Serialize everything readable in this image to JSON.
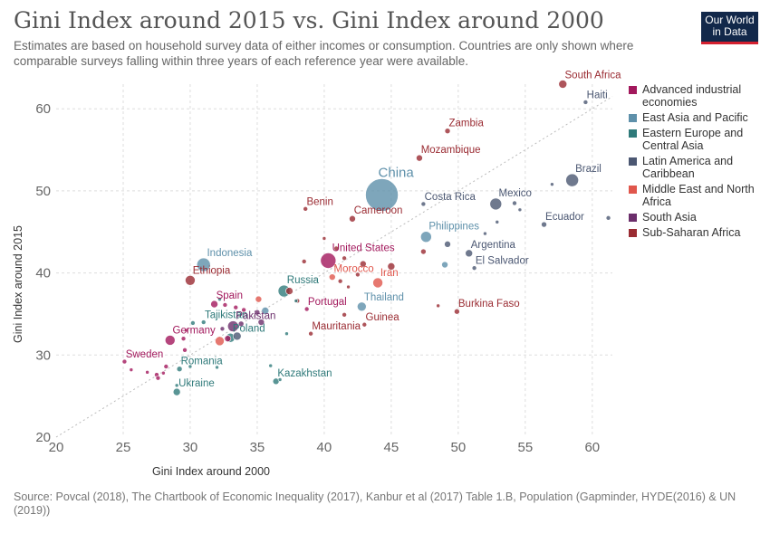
{
  "header": {
    "title": "Gini Index around 2015 vs. Gini Index around 2000",
    "subtitle": "Estimates are based on household survey data of either incomes or consumption. Countries are only shown where comparable surveys falling within three years of each reference year were available."
  },
  "logo": {
    "line1": "Our World",
    "line2": "in Data"
  },
  "footer": {
    "source": "Source: Povcal (2018), The Chartbook of Economic Inequality (2017), Kanbur et al (2017) Table 1.B, Population (Gapminder, HYDE(2016) & UN (2019))"
  },
  "chart_data": {
    "type": "scatter",
    "xlabel": "Gini Index around 2000",
    "ylabel": "Gini Index around 2015",
    "xlim": [
      20,
      61.5
    ],
    "ylim": [
      20,
      63
    ],
    "xticks": [
      20,
      25,
      30,
      35,
      40,
      45,
      50,
      55,
      60
    ],
    "yticks": [
      20,
      30,
      40,
      50,
      60
    ],
    "grid": true,
    "diagonal_reference_line": true,
    "legend_position": "right",
    "series": [
      {
        "name": "Advanced industrial economies",
        "color": "#a2185c"
      },
      {
        "name": "East Asia and Pacific",
        "color": "#5e90aa"
      },
      {
        "name": "Eastern Europe and Central Asia",
        "color": "#2f7a7a"
      },
      {
        "name": "Latin America and Caribbean",
        "color": "#4b5772"
      },
      {
        "name": "Middle East and North Africa",
        "color": "#e0564c"
      },
      {
        "name": "South Asia",
        "color": "#6b2e6b"
      },
      {
        "name": "Sub-Saharan Africa",
        "color": "#9a2b32"
      }
    ],
    "points": [
      {
        "label": "South Africa",
        "x": 57.8,
        "y": 63.0,
        "size": 9,
        "region": 6
      },
      {
        "label": "Haiti",
        "x": 59.5,
        "y": 60.8,
        "size": 5,
        "region": 3
      },
      {
        "label": "Zambia",
        "x": 49.2,
        "y": 57.3,
        "size": 6,
        "region": 6
      },
      {
        "label": "Mozambique",
        "x": 47.1,
        "y": 54.0,
        "size": 7,
        "region": 6
      },
      {
        "label": "Brazil",
        "x": 58.5,
        "y": 51.3,
        "size": 14,
        "region": 3
      },
      {
        "label": "China",
        "x": 44.3,
        "y": 49.5,
        "size": 36,
        "region": 1
      },
      {
        "label": "Costa Rica",
        "x": 47.4,
        "y": 48.4,
        "size": 5,
        "region": 3
      },
      {
        "label": "Mexico",
        "x": 52.8,
        "y": 48.4,
        "size": 13,
        "region": 3
      },
      {
        "label": "Benin",
        "x": 38.6,
        "y": 47.8,
        "size": 5,
        "region": 6
      },
      {
        "label": "Cameroon",
        "x": 42.1,
        "y": 46.6,
        "size": 7,
        "region": 6
      },
      {
        "label": "Ecuador",
        "x": 56.4,
        "y": 45.9,
        "size": 6,
        "region": 3
      },
      {
        "label": "Philippines",
        "x": 47.6,
        "y": 44.4,
        "size": 12,
        "region": 1
      },
      {
        "label": "Argentina",
        "x": 50.8,
        "y": 42.4,
        "size": 8,
        "region": 3
      },
      {
        "label": "United States",
        "x": 40.3,
        "y": 41.5,
        "size": 17,
        "region": 0
      },
      {
        "label": "El Salvador",
        "x": 51.2,
        "y": 40.6,
        "size": 5,
        "region": 3
      },
      {
        "label": "Indonesia",
        "x": 31.0,
        "y": 41.0,
        "size": 15,
        "region": 1
      },
      {
        "label": "Morocco",
        "x": 40.6,
        "y": 39.5,
        "size": 7,
        "region": 4
      },
      {
        "label": "Iran",
        "x": 44.0,
        "y": 38.8,
        "size": 11,
        "region": 4
      },
      {
        "label": "Ethiopia",
        "x": 30.0,
        "y": 39.1,
        "size": 11,
        "region": 6
      },
      {
        "label": "Russia",
        "x": 37.0,
        "y": 37.8,
        "size": 13,
        "region": 2
      },
      {
        "label": "Spain",
        "x": 31.8,
        "y": 36.2,
        "size": 8,
        "region": 0
      },
      {
        "label": "Portugal",
        "x": 38.7,
        "y": 35.6,
        "size": 5,
        "region": 0
      },
      {
        "label": "Thailand",
        "x": 42.8,
        "y": 35.9,
        "size": 10,
        "region": 1
      },
      {
        "label": "Burkina Faso",
        "x": 49.9,
        "y": 35.3,
        "size": 6,
        "region": 6
      },
      {
        "label": "Tajikistan",
        "x": 31.0,
        "y": 34.0,
        "size": 5,
        "region": 2
      },
      {
        "label": "Pakistan",
        "x": 33.2,
        "y": 33.5,
        "size": 12,
        "region": 5
      },
      {
        "label": "Guinea",
        "x": 43.0,
        "y": 33.7,
        "size": 5,
        "region": 6
      },
      {
        "label": "Mauritania",
        "x": 39.0,
        "y": 32.6,
        "size": 5,
        "region": 6
      },
      {
        "label": "Germany",
        "x": 28.5,
        "y": 31.8,
        "size": 11,
        "region": 0
      },
      {
        "label": "Poland",
        "x": 33.0,
        "y": 32.1,
        "size": 10,
        "region": 2
      },
      {
        "label": "Sweden",
        "x": 25.1,
        "y": 29.2,
        "size": 5,
        "region": 0
      },
      {
        "label": "Romania",
        "x": 29.2,
        "y": 28.3,
        "size": 6,
        "region": 2
      },
      {
        "label": "Kazakhstan",
        "x": 36.4,
        "y": 26.8,
        "size": 7,
        "region": 2
      },
      {
        "label": "Ukraine",
        "x": 29.0,
        "y": 25.5,
        "size": 8,
        "region": 2
      },
      {
        "label": "",
        "x": 61.2,
        "y": 46.7,
        "size": 5,
        "region": 3
      },
      {
        "label": "",
        "x": 57.0,
        "y": 50.8,
        "size": 4,
        "region": 3
      },
      {
        "label": "",
        "x": 54.2,
        "y": 48.5,
        "size": 5,
        "region": 3
      },
      {
        "label": "",
        "x": 54.6,
        "y": 47.7,
        "size": 4,
        "region": 3
      },
      {
        "label": "",
        "x": 52.0,
        "y": 44.8,
        "size": 4,
        "region": 3
      },
      {
        "label": "",
        "x": 49.2,
        "y": 43.5,
        "size": 7,
        "region": 3
      },
      {
        "label": "",
        "x": 52.9,
        "y": 46.2,
        "size": 4,
        "region": 3
      },
      {
        "label": "",
        "x": 49.0,
        "y": 41.0,
        "size": 7,
        "region": 1
      },
      {
        "label": "",
        "x": 47.4,
        "y": 42.6,
        "size": 6,
        "region": 6
      },
      {
        "label": "",
        "x": 45.0,
        "y": 40.8,
        "size": 8,
        "region": 6
      },
      {
        "label": "",
        "x": 42.9,
        "y": 41.1,
        "size": 7,
        "region": 6
      },
      {
        "label": "",
        "x": 42.5,
        "y": 39.8,
        "size": 5,
        "region": 6
      },
      {
        "label": "",
        "x": 40.0,
        "y": 44.2,
        "size": 4,
        "region": 6
      },
      {
        "label": "",
        "x": 40.9,
        "y": 43.0,
        "size": 5,
        "region": 6
      },
      {
        "label": "",
        "x": 41.5,
        "y": 41.8,
        "size": 5,
        "region": 6
      },
      {
        "label": "",
        "x": 38.5,
        "y": 41.4,
        "size": 5,
        "region": 6
      },
      {
        "label": "",
        "x": 41.2,
        "y": 39.0,
        "size": 5,
        "region": 6
      },
      {
        "label": "",
        "x": 41.5,
        "y": 34.9,
        "size": 5,
        "region": 6
      },
      {
        "label": "",
        "x": 41.8,
        "y": 38.3,
        "size": 4,
        "region": 6
      },
      {
        "label": "",
        "x": 48.5,
        "y": 36.0,
        "size": 4,
        "region": 6
      },
      {
        "label": "",
        "x": 38.0,
        "y": 36.6,
        "size": 5,
        "region": 6
      },
      {
        "label": "",
        "x": 37.4,
        "y": 37.8,
        "size": 8,
        "region": 6
      },
      {
        "label": "",
        "x": 35.1,
        "y": 36.8,
        "size": 7,
        "region": 4
      },
      {
        "label": "",
        "x": 35.6,
        "y": 35.4,
        "size": 8,
        "region": 1
      },
      {
        "label": "",
        "x": 35.3,
        "y": 34.0,
        "size": 7,
        "region": 5
      },
      {
        "label": "",
        "x": 35.0,
        "y": 35.2,
        "size": 6,
        "region": 5
      },
      {
        "label": "",
        "x": 34.0,
        "y": 35.5,
        "size": 5,
        "region": 0
      },
      {
        "label": "",
        "x": 33.4,
        "y": 35.8,
        "size": 5,
        "region": 0
      },
      {
        "label": "",
        "x": 32.6,
        "y": 36.1,
        "size": 5,
        "region": 0
      },
      {
        "label": "",
        "x": 32.2,
        "y": 36.8,
        "size": 4,
        "region": 2
      },
      {
        "label": "",
        "x": 37.9,
        "y": 36.6,
        "size": 4,
        "region": 2
      },
      {
        "label": "",
        "x": 37.2,
        "y": 32.6,
        "size": 4,
        "region": 2
      },
      {
        "label": "",
        "x": 33.5,
        "y": 32.3,
        "size": 9,
        "region": 3
      },
      {
        "label": "",
        "x": 32.8,
        "y": 32.0,
        "size": 7,
        "region": 0
      },
      {
        "label": "",
        "x": 32.2,
        "y": 31.7,
        "size": 10,
        "region": 4
      },
      {
        "label": "",
        "x": 33.8,
        "y": 33.8,
        "size": 6,
        "region": 5
      },
      {
        "label": "",
        "x": 29.5,
        "y": 32.0,
        "size": 5,
        "region": 0
      },
      {
        "label": "",
        "x": 29.7,
        "y": 33.0,
        "size": 4,
        "region": 0
      },
      {
        "label": "",
        "x": 30.2,
        "y": 33.9,
        "size": 5,
        "region": 2
      },
      {
        "label": "",
        "x": 29.6,
        "y": 30.6,
        "size": 5,
        "region": 0
      },
      {
        "label": "",
        "x": 25.6,
        "y": 28.2,
        "size": 4,
        "region": 0
      },
      {
        "label": "",
        "x": 26.8,
        "y": 27.9,
        "size": 4,
        "region": 0
      },
      {
        "label": "",
        "x": 27.5,
        "y": 27.6,
        "size": 5,
        "region": 0
      },
      {
        "label": "",
        "x": 27.6,
        "y": 27.2,
        "size": 5,
        "region": 0
      },
      {
        "label": "",
        "x": 28.2,
        "y": 28.6,
        "size": 5,
        "region": 0
      },
      {
        "label": "",
        "x": 28.0,
        "y": 27.8,
        "size": 4,
        "region": 0
      },
      {
        "label": "",
        "x": 29.0,
        "y": 26.3,
        "size": 4,
        "region": 2
      },
      {
        "label": "",
        "x": 30.0,
        "y": 28.6,
        "size": 4,
        "region": 2
      },
      {
        "label": "",
        "x": 32.0,
        "y": 28.5,
        "size": 4,
        "region": 2
      },
      {
        "label": "",
        "x": 36.0,
        "y": 28.7,
        "size": 4,
        "region": 2
      },
      {
        "label": "",
        "x": 36.7,
        "y": 27.0,
        "size": 4,
        "region": 2
      },
      {
        "label": "",
        "x": 32.4,
        "y": 33.2,
        "size": 5,
        "region": 5
      }
    ]
  }
}
